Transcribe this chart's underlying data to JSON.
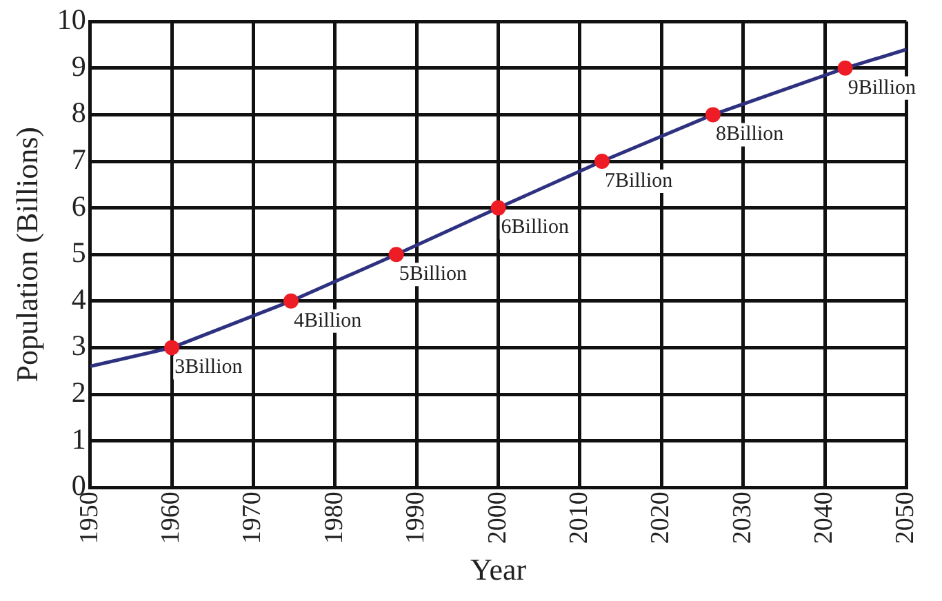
{
  "chart_data": {
    "type": "line",
    "xlabel": "Year",
    "ylabel": "Population (Billions)",
    "xlim": [
      1950,
      2050
    ],
    "xticks": [
      1950,
      1960,
      1970,
      1980,
      1990,
      2000,
      2010,
      2020,
      2030,
      2040,
      2050
    ],
    "ylim": [
      0,
      10
    ],
    "yticks": [
      0,
      1,
      2,
      3,
      4,
      5,
      6,
      7,
      8,
      9,
      10
    ],
    "grid": true,
    "series": [
      {
        "type": "line",
        "color": "#2e3180",
        "marker": "none",
        "x": [
          1950,
          1960,
          1974.6,
          1987.5,
          2000,
          2012.7,
          2026.3,
          2042.5,
          2050
        ],
        "values": [
          2.6,
          3,
          4,
          5,
          6,
          7,
          8,
          9,
          9.4
        ]
      },
      {
        "type": "scatter",
        "color": "#ee1c24",
        "marker": "circle",
        "x": [
          1960,
          1974.6,
          1987.5,
          2000,
          2012.7,
          2026.3,
          2042.5
        ],
        "values": [
          3,
          4,
          5,
          6,
          7,
          8,
          9
        ]
      }
    ],
    "annotations": [
      {
        "text": "3Billion",
        "x": 1960,
        "y": 3
      },
      {
        "text": "4Billion",
        "x": 1974.6,
        "y": 4
      },
      {
        "text": "5Billion",
        "x": 1987.5,
        "y": 5
      },
      {
        "text": "6Billion",
        "x": 2000,
        "y": 6
      },
      {
        "text": "7Billion",
        "x": 2012.7,
        "y": 7
      },
      {
        "text": "8Billion",
        "x": 2026.3,
        "y": 8
      },
      {
        "text": "9Billion",
        "x": 2042.5,
        "y": 9
      }
    ]
  }
}
